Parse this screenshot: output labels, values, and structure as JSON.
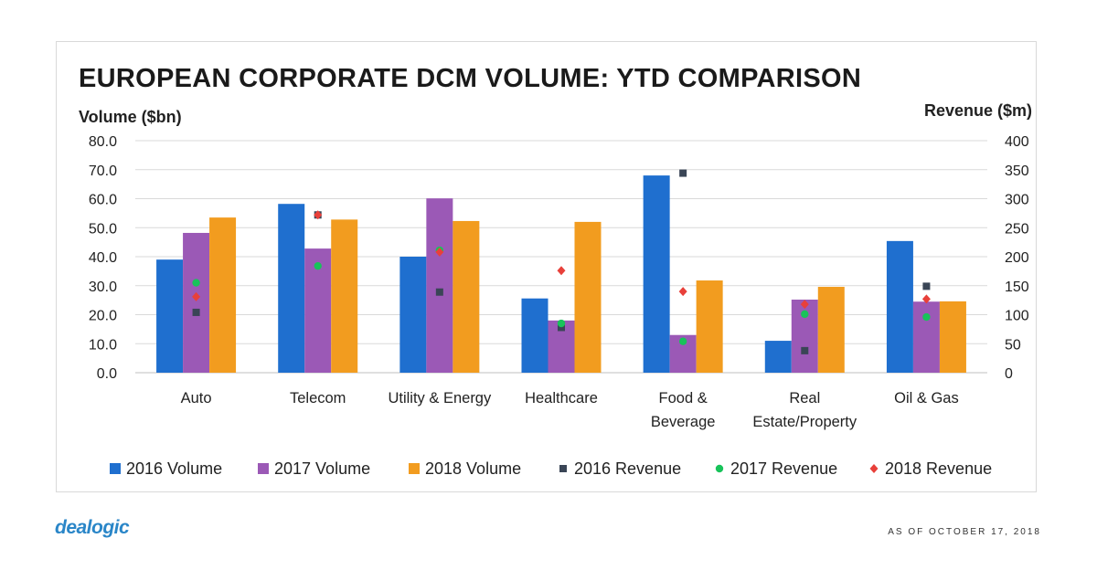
{
  "chart_data": {
    "type": "bar",
    "title": "EUROPEAN CORPORATE DCM VOLUME: YTD COMPARISON",
    "ylabel": "Volume ($bn)",
    "y2label": "Revenue ($m)",
    "ylim": [
      0,
      80
    ],
    "y2lim": [
      0,
      400
    ],
    "yticks": [
      "0.0",
      "10.0",
      "20.0",
      "30.0",
      "40.0",
      "50.0",
      "60.0",
      "70.0",
      "80.0"
    ],
    "y2ticks": [
      "0",
      "50",
      "100",
      "150",
      "200",
      "250",
      "300",
      "350",
      "400"
    ],
    "grid": true,
    "legend_position": "bottom",
    "categories": [
      [
        "Auto"
      ],
      [
        "Telecom"
      ],
      [
        "Utility & Energy"
      ],
      [
        "Healthcare"
      ],
      [
        "Food &",
        "Beverage"
      ],
      [
        "Real",
        "Estate/Property"
      ],
      [
        "Oil & Gas"
      ]
    ],
    "series": [
      {
        "name": "2016 Volume",
        "kind": "bar",
        "axis": "left",
        "color": "#1f6fcf",
        "values": [
          39.0,
          58.2,
          40.0,
          25.6,
          68.0,
          11.0,
          45.4
        ]
      },
      {
        "name": "2017 Volume",
        "kind": "bar",
        "axis": "left",
        "color": "#9b59b6",
        "values": [
          48.2,
          42.8,
          60.1,
          18.0,
          13.0,
          25.2,
          24.5
        ]
      },
      {
        "name": "2018 Volume",
        "kind": "bar",
        "axis": "left",
        "color": "#f29c1f",
        "values": [
          53.5,
          52.8,
          52.3,
          52.0,
          31.8,
          29.6,
          24.6
        ]
      },
      {
        "name": "2016 Revenue",
        "kind": "marker",
        "marker": "square",
        "axis": "right",
        "color": "#3a4556",
        "values": [
          104,
          272,
          139,
          78,
          344,
          38,
          149
        ]
      },
      {
        "name": "2017 Revenue",
        "kind": "marker",
        "marker": "circle",
        "axis": "right",
        "color": "#18c35a",
        "values": [
          155,
          184,
          211,
          85,
          54,
          101,
          96
        ]
      },
      {
        "name": "2018 Revenue",
        "kind": "marker",
        "marker": "diamond",
        "axis": "right",
        "color": "#e8403a",
        "values": [
          131,
          272,
          208,
          176,
          140,
          118,
          127
        ]
      }
    ]
  },
  "footer": {
    "logo": "dealogic",
    "as_of": "AS OF OCTOBER 17, 2018"
  }
}
